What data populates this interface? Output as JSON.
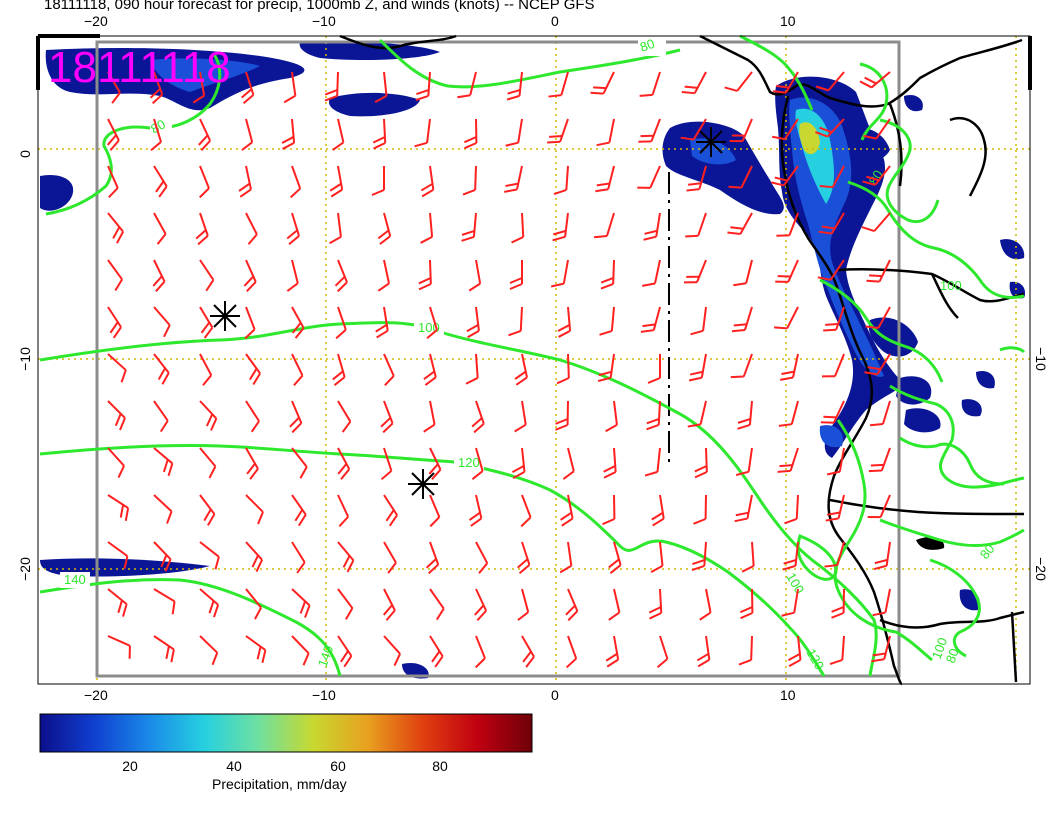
{
  "title": "18111118, 090 hour forecast for precip, 1000mb Z, and winds (knots) -- NCEP GFS",
  "stamp": "18111118",
  "axes": {
    "lon_ticks": [
      "−20",
      "−10",
      "0",
      "10"
    ],
    "lat_ticks_left": [
      "0",
      "−10",
      "−20"
    ],
    "lat_ticks_right": [
      "−10",
      "−20"
    ]
  },
  "contours": {
    "variable": "1000mb Z",
    "labels": [
      "80",
      "80",
      "100",
      "120",
      "140",
      "100",
      "120",
      "80",
      "100",
      "80",
      "140",
      "80",
      "100"
    ]
  },
  "colorbar": {
    "label": "Precipitation, mm/day",
    "ticks": [
      "20",
      "40",
      "60",
      "80"
    ],
    "colors": [
      "#0b0f8a",
      "#1040d0",
      "#1a8ae8",
      "#26d0e0",
      "#6fe0a0",
      "#c8d830",
      "#e8a020",
      "#e04010",
      "#c00010",
      "#6e0008"
    ]
  },
  "colors": {
    "wind_barbs": "#ff2020",
    "height_contours": "#2ee82e",
    "coastline": "#000000",
    "grid": "#d4b800",
    "stamp": "#ff00ff"
  },
  "icons": [
    "wind-barb-icon",
    "low-center-asterisk-icon"
  ]
}
